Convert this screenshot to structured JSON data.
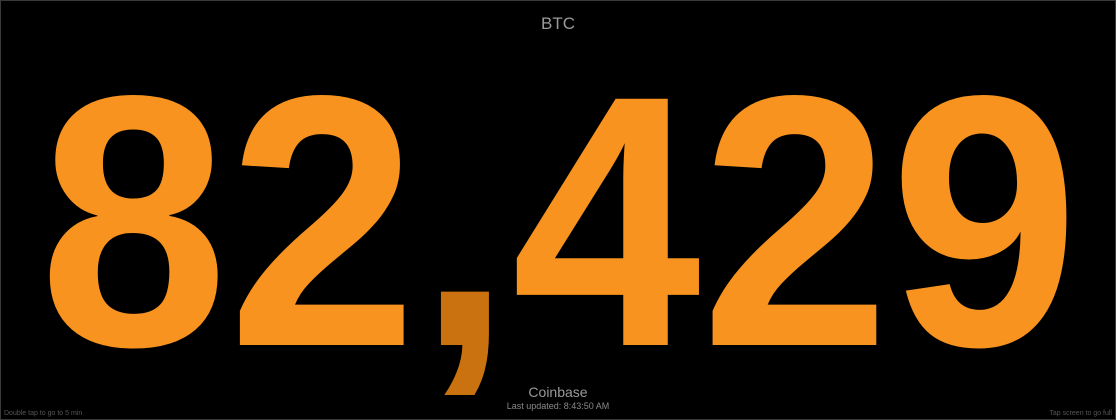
{
  "ticker": {
    "symbol": "BTC",
    "price_digits_left": "82",
    "separator": ",",
    "price_digits_right": "429",
    "source": "Coinbase",
    "last_updated": "Last updated: 8:43:50 AM"
  },
  "footer": {
    "left_hint": "Double tap to go to 5 min",
    "right_hint": "Tap screen to go full"
  },
  "colors": {
    "price": "#f7931e",
    "separator": "#c9720f",
    "background": "#000000",
    "label": "#9a9a9a"
  }
}
